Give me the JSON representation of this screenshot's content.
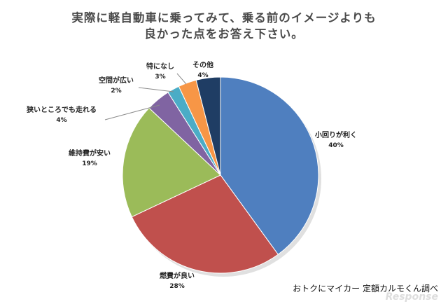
{
  "chart_data": {
    "type": "pie",
    "title_lines": [
      "実際に軽自動車に乗ってみて、乗る前のイメージよりも",
      "良かった点をお答え下さい。"
    ],
    "start_angle_deg": 0,
    "direction": "clockwise",
    "slices": [
      {
        "label": "小回りが利く",
        "value": 40,
        "value_text": "40%",
        "color": "#4f7fbf"
      },
      {
        "label": "燃費が良い",
        "value": 28,
        "value_text": "28%",
        "color": "#c0504d"
      },
      {
        "label": "維持費が安い",
        "value": 19,
        "value_text": "19%",
        "color": "#9bbb59"
      },
      {
        "label": "狭いところでも走れる",
        "value": 4,
        "value_text": "4%",
        "color": "#8064a2"
      },
      {
        "label": "空間が広い",
        "value": 2,
        "value_text": "2%",
        "color": "#4bacc6"
      },
      {
        "label": "特になし",
        "value": 3,
        "value_text": "3%",
        "color": "#f79646"
      },
      {
        "label": "その他",
        "value": 4,
        "value_text": "4%",
        "color": "#1f3d64"
      }
    ]
  },
  "credit": "おトクにマイカー 定額カルモくん調べ",
  "watermark": "Response"
}
